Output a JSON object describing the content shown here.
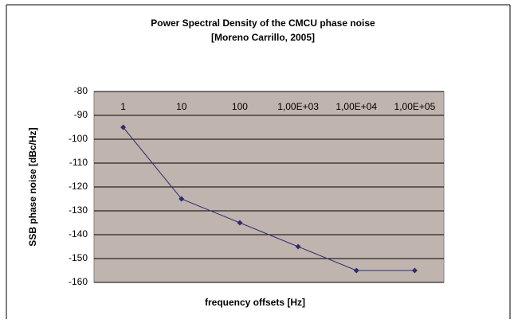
{
  "chart_data": {
    "type": "line",
    "title": "Power Spectral Density of the CMCU phase noise",
    "subtitle": "[Moreno Carrillo, 2005]",
    "x_label": "frequency offsets [Hz]",
    "y_label": "SSB phase noise [dBc/Hz]",
    "categories": [
      "1",
      "10",
      "100",
      "1,00E+03",
      "1,00E+04",
      "1,00E+05"
    ],
    "series": [
      {
        "name": "SSB phase noise",
        "color": "#2e2e6e",
        "values": [
          -95,
          -125,
          -135,
          -145,
          -155,
          -155
        ]
      }
    ],
    "ylim": [
      -160,
      -80
    ],
    "yticks": [
      -80,
      -90,
      -100,
      -110,
      -120,
      -130,
      -140,
      -150,
      -160
    ],
    "grid": true,
    "plot_color": "#c0b4af"
  }
}
